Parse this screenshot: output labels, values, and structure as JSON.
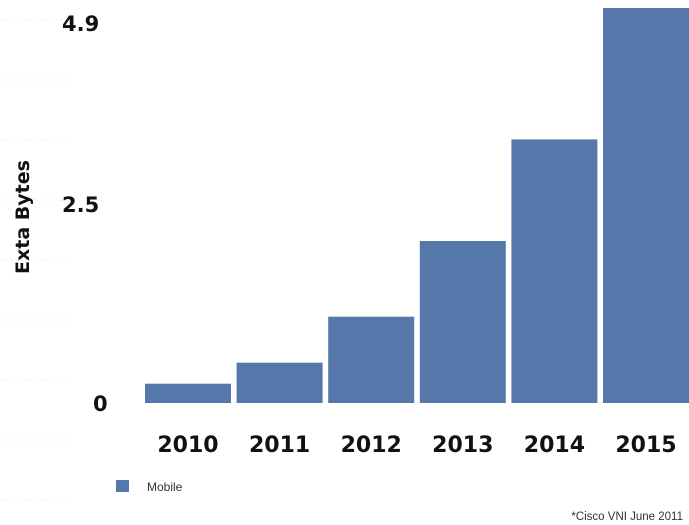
{
  "chart_data": {
    "type": "bar",
    "categories": [
      "2010",
      "2011",
      "2012",
      "2013",
      "2014",
      "2015"
    ],
    "series": [
      {
        "name": "Mobile",
        "values": [
          0.24,
          0.5,
          1.07,
          2.01,
          3.27,
          4.9
        ],
        "color": "#5577aa"
      }
    ],
    "ylabel": "Exta Bytes",
    "yticks": [
      "0",
      "2.5",
      "4.9"
    ],
    "ytick_values": [
      0,
      2.5,
      4.9
    ],
    "ylim": [
      0,
      4.9
    ],
    "grid": false,
    "legend_position": "bottom-left",
    "source_note": "*Cisco VNI June 2011"
  }
}
